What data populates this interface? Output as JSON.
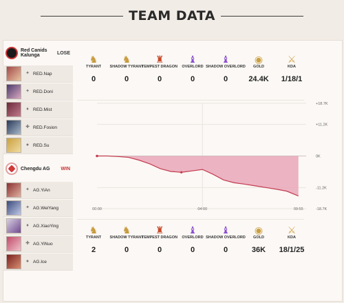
{
  "header": {
    "title": "TEAM DATA"
  },
  "teams": [
    {
      "name": "Red Canids Kalunga",
      "result": "LOSE",
      "players": [
        "RED.Nap",
        "RED.Doni",
        "RED.Mist",
        "RED.Fosion",
        "RED.Su"
      ],
      "stats": {
        "tyrant": "0",
        "shadow_tyrant": "0",
        "tempest_dragon": "0",
        "overlord": "0",
        "shadow_overlord": "0",
        "gold": "24.4K",
        "kda": "1/18/1"
      }
    },
    {
      "name": "Chengdu AG",
      "result": "WIN",
      "players": [
        "AG.YiAn",
        "AG.WeiYang",
        "AG.XiaoYing",
        "AG.YiNuo",
        "AG.Ice"
      ],
      "stats": {
        "tyrant": "2",
        "shadow_tyrant": "0",
        "tempest_dragon": "0",
        "overlord": "0",
        "shadow_overlord": "0",
        "gold": "36K",
        "kda": "18/1/25"
      }
    }
  ],
  "stat_labels": {
    "tyrant": "TYRANT",
    "shadow_tyrant": "SHADOW TYRANT",
    "tempest_dragon": "TEMPEST DRAGON",
    "overlord": "OVERLORD",
    "shadow_overlord": "SHADOW OVERLORD",
    "gold": "GOLD",
    "kda": "KDA"
  },
  "chart_data": {
    "type": "area",
    "y_tick_labels": [
      "+18.7K",
      "+11.2K",
      "0K",
      "-11.2K",
      "-18.7K"
    ],
    "x_tick_labels": [
      "00:00",
      "04:00",
      "09:55"
    ],
    "x": [
      0,
      0.5,
      1.0,
      1.5,
      2.0,
      2.5,
      3.0,
      3.5,
      4.0,
      4.5,
      5.0,
      5.5,
      6.0,
      6.5,
      7.0,
      7.5,
      8.0,
      8.5,
      9.0,
      9.55
    ],
    "values": [
      0,
      0,
      -0.2,
      -0.5,
      -1.5,
      -2.8,
      -4.5,
      -5.5,
      -5.8,
      -5.3,
      -4.8,
      -6.5,
      -8.5,
      -9.5,
      -10.0,
      -10.6,
      -11.2,
      -11.8,
      -12.5,
      -14.2
    ],
    "ylim": [
      -18.7,
      18.7
    ],
    "xlim": [
      0,
      9.917
    ],
    "line_color": "#c23b4f",
    "fill_color": "#e9a7b8"
  },
  "colors": {
    "tyrant": "#c79a3c",
    "tempest": "#c94a2a",
    "overlord": "#8a4fd0",
    "gold": "#caa040",
    "kda": "#d4a54a"
  }
}
